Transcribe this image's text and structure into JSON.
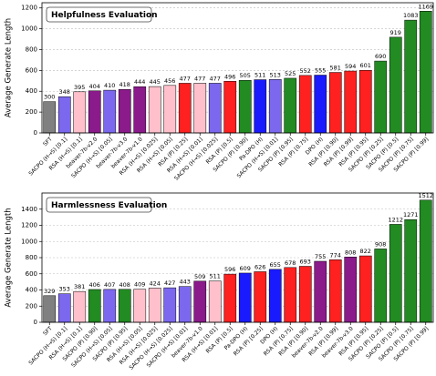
{
  "chart_data": [
    {
      "type": "bar",
      "title": "Helpfulness Evaluation",
      "y_label": "Average Generate Length",
      "categories": [
        "SFT",
        "SACPO (H→S) [0.1]",
        "RSA (H→S) [0.1]",
        "beaver-7b-v2.0",
        "SACPO (H→S) [0.05]",
        "beaver-7b-v3.0",
        "beaver-7b-v1.0",
        "RSA (H→S) [0.025]",
        "RSA (H→S) [0.05]",
        "RSA (P) [0.25]",
        "RSA (H→S) [0.01]",
        "SACPO (H→S) [0.025]",
        "RSA (P) [0.5]",
        "SACPO (P) [0.90]",
        "Pa-DPO (H)",
        "SACPO (H→S) [0.01]",
        "SACPO (P) [0.95]",
        "RSA (P) [0.75]",
        "DPO (H)",
        "RSA (P) [0.90]",
        "RSA (P) [0.99]",
        "RSA (P) [0.95]",
        "SACPO (P) [0.25]",
        "SACPO (P) [0.5]",
        "SACPO (P) [0.75]",
        "SACPO (P) [0.99]"
      ],
      "values": [
        300,
        348,
        395,
        404,
        410,
        418,
        444,
        445,
        456,
        477,
        477,
        477,
        496,
        505,
        511,
        513,
        525,
        552,
        555,
        581,
        594,
        601,
        690,
        919,
        1083,
        1169
      ],
      "colors": [
        "#808080",
        "#7b68ee",
        "#ffc0cb",
        "#8b1a8b",
        "#7b68ee",
        "#8b1a8b",
        "#8b1a8b",
        "#ffc0cb",
        "#ffc0cb",
        "#ff2020",
        "#ffc0cb",
        "#7b68ee",
        "#ff2020",
        "#228b22",
        "#1a1aff",
        "#7b68ee",
        "#228b22",
        "#ff2020",
        "#1a1aff",
        "#ff2020",
        "#ff2020",
        "#ff2020",
        "#228b22",
        "#228b22",
        "#228b22",
        "#228b22"
      ],
      "ylim": [
        0,
        1250
      ],
      "yticks": [
        0,
        200,
        400,
        600,
        800,
        1000,
        1200
      ],
      "grid": true
    },
    {
      "type": "bar",
      "title": "Harmlessness Evaluation",
      "y_label": "Average Generate Length",
      "categories": [
        "SFT",
        "SACPO (H→S) [0.1]",
        "RSA (H→S) [0.1]",
        "SACPO (P) [0.90]",
        "SACPO (H→S) [0.05]",
        "SACPO (P) [0.95]",
        "RSA (H→S) [0.05]",
        "RSA (H→S) [0.025]",
        "SACPO (H→S) [0.025]",
        "SACPO (H→S) [0.01]",
        "beaver-7b-v1.0",
        "RSA (H→S) [0.01]",
        "RSA (P) [0.5]",
        "Pa-DPO (H)",
        "RSA (P) [0.25]",
        "DPO (H)",
        "RSA (P) [0.75]",
        "RSA (P) [0.90]",
        "beaver-7b-v2.0",
        "RSA (P) [0.99]",
        "beaver-7b-v3.0",
        "RSA (P) [0.95]",
        "SACPO (P) [0.25]",
        "SACPO (P) [0.5]",
        "SACPO (P) [0.75]",
        "SACPO (P) [0.99]"
      ],
      "values": [
        329,
        353,
        381,
        406,
        407,
        408,
        409,
        424,
        427,
        443,
        509,
        511,
        596,
        609,
        626,
        655,
        678,
        693,
        755,
        774,
        808,
        822,
        908,
        1212,
        1271,
        1512
      ],
      "colors": [
        "#808080",
        "#7b68ee",
        "#ffc0cb",
        "#228b22",
        "#7b68ee",
        "#228b22",
        "#ffc0cb",
        "#ffc0cb",
        "#7b68ee",
        "#7b68ee",
        "#8b1a8b",
        "#ffc0cb",
        "#ff2020",
        "#1a1aff",
        "#ff2020",
        "#1a1aff",
        "#ff2020",
        "#ff2020",
        "#8b1a8b",
        "#ff2020",
        "#8b1a8b",
        "#ff2020",
        "#228b22",
        "#228b22",
        "#228b22",
        "#228b22"
      ],
      "ylim": [
        0,
        1600
      ],
      "yticks": [
        0,
        200,
        400,
        600,
        800,
        1000,
        1200,
        1400
      ],
      "grid": true
    }
  ]
}
